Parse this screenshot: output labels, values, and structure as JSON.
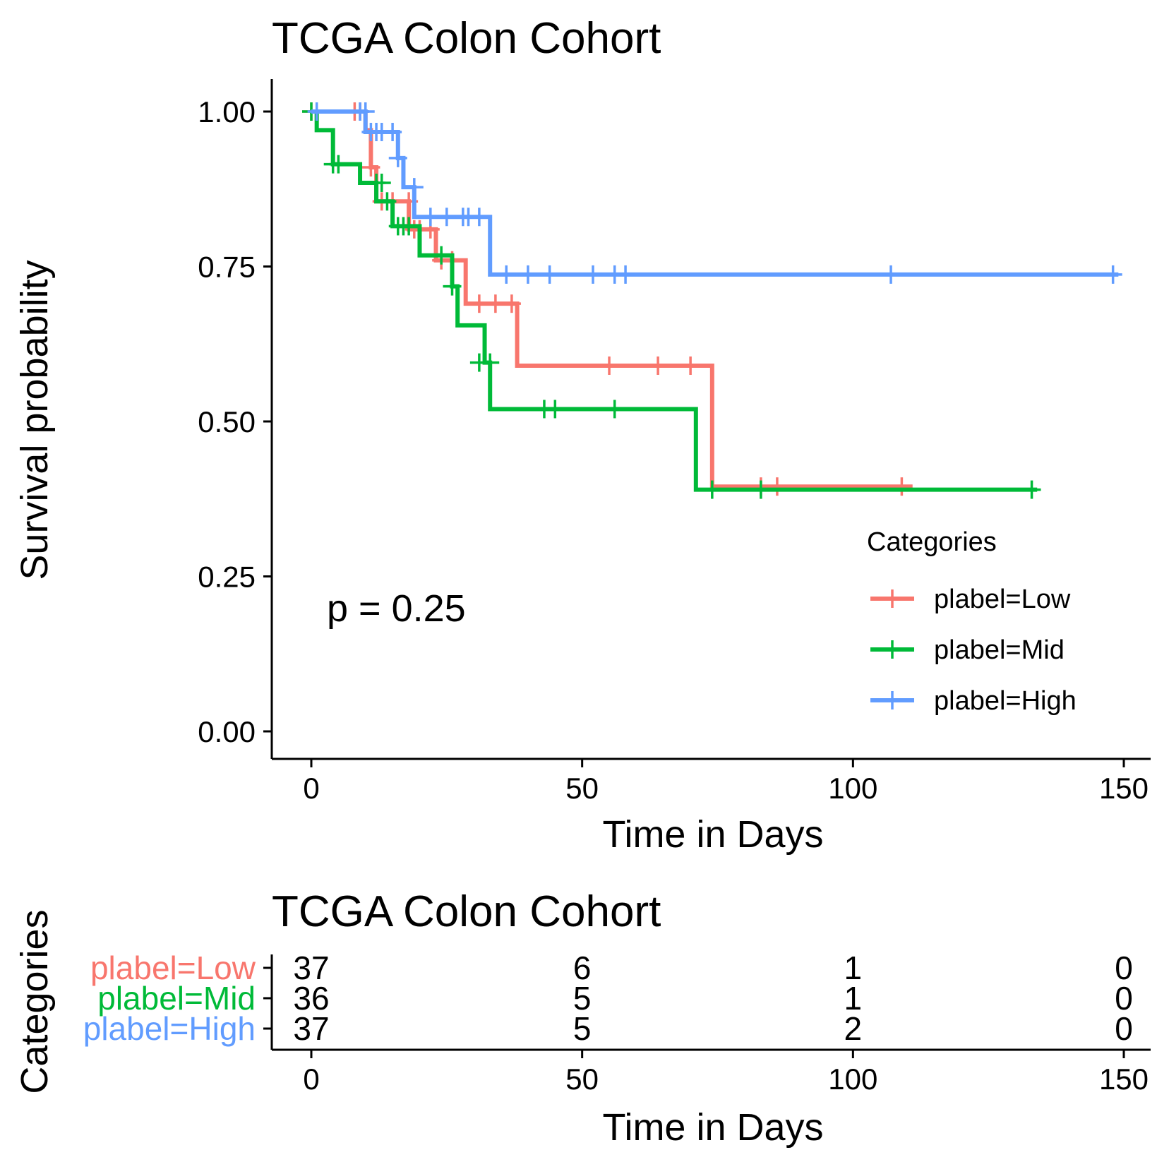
{
  "chart_data": [
    {
      "type": "line",
      "subtype": "kaplan-meier",
      "title": "TCGA Colon Cohort",
      "xlabel": "Time in Days",
      "ylabel": "Survival probability",
      "xlim": [
        0,
        150
      ],
      "ylim": [
        0,
        1
      ],
      "xticks": [
        "0",
        "50",
        "100",
        "150"
      ],
      "yticks": [
        "0.00",
        "0.25",
        "0.50",
        "0.75",
        "1.00"
      ],
      "grid": false,
      "annotation": "p = 0.25",
      "legend": {
        "title": "Categories",
        "position": "right",
        "entries": [
          "plabel=Low",
          "plabel=Mid",
          "plabel=High"
        ]
      },
      "series": [
        {
          "name": "plabel=Low",
          "color": "#F8766D",
          "steps": [
            [
              0,
              1.0
            ],
            [
              10,
              0.97
            ],
            [
              11,
              0.91
            ],
            [
              12,
              0.855
            ],
            [
              18,
              0.81
            ],
            [
              23,
              0.76
            ],
            [
              28.5,
              0.69
            ],
            [
              38,
              0.59
            ],
            [
              74,
              0.395
            ]
          ],
          "end": 111,
          "censor": [
            [
              0,
              1.0
            ],
            [
              8,
              1.0
            ],
            [
              9,
              1.0
            ],
            [
              11,
              0.91
            ],
            [
              13,
              0.855
            ],
            [
              15,
              0.855
            ],
            [
              18,
              0.855
            ],
            [
              19,
              0.81
            ],
            [
              20,
              0.81
            ],
            [
              22,
              0.81
            ],
            [
              24,
              0.76
            ],
            [
              26,
              0.76
            ],
            [
              31,
              0.69
            ],
            [
              34,
              0.69
            ],
            [
              37,
              0.69
            ],
            [
              55,
              0.59
            ],
            [
              64,
              0.59
            ],
            [
              70,
              0.59
            ],
            [
              83,
              0.395
            ],
            [
              86,
              0.395
            ],
            [
              109,
              0.395
            ]
          ]
        },
        {
          "name": "plabel=Mid",
          "color": "#00BA38",
          "steps": [
            [
              0,
              1.0
            ],
            [
              1,
              0.97
            ],
            [
              4,
              0.915
            ],
            [
              9,
              0.885
            ],
            [
              12,
              0.855
            ],
            [
              15,
              0.815
            ],
            [
              20,
              0.768
            ],
            [
              26,
              0.718
            ],
            [
              27,
              0.655
            ],
            [
              32,
              0.595
            ],
            [
              33,
              0.52
            ],
            [
              71,
              0.39
            ]
          ],
          "end": 134,
          "censor": [
            [
              0,
              1.0
            ],
            [
              4,
              0.915
            ],
            [
              5,
              0.915
            ],
            [
              12,
              0.885
            ],
            [
              13,
              0.885
            ],
            [
              14,
              0.855
            ],
            [
              16,
              0.815
            ],
            [
              17,
              0.815
            ],
            [
              18,
              0.815
            ],
            [
              24,
              0.768
            ],
            [
              26,
              0.718
            ],
            [
              31,
              0.595
            ],
            [
              33,
              0.595
            ],
            [
              43,
              0.52
            ],
            [
              45,
              0.52
            ],
            [
              56,
              0.52
            ],
            [
              74,
              0.39
            ],
            [
              83,
              0.39
            ],
            [
              133,
              0.39
            ]
          ]
        },
        {
          "name": "plabel=High",
          "color": "#619CFF",
          "steps": [
            [
              0,
              1.0
            ],
            [
              10,
              0.967
            ],
            [
              16,
              0.925
            ],
            [
              17,
              0.878
            ],
            [
              19,
              0.83
            ],
            [
              33,
              0.737
            ]
          ],
          "end": 149,
          "censor": [
            [
              1,
              1.0
            ],
            [
              9,
              1.0
            ],
            [
              10,
              1.0
            ],
            [
              11,
              0.967
            ],
            [
              12,
              0.967
            ],
            [
              13,
              0.967
            ],
            [
              15,
              0.967
            ],
            [
              16,
              0.925
            ],
            [
              19,
              0.878
            ],
            [
              22,
              0.83
            ],
            [
              25,
              0.83
            ],
            [
              28,
              0.83
            ],
            [
              29,
              0.83
            ],
            [
              31,
              0.83
            ],
            [
              36,
              0.737
            ],
            [
              40,
              0.737
            ],
            [
              44,
              0.737
            ],
            [
              52,
              0.737
            ],
            [
              56,
              0.737
            ],
            [
              58,
              0.737
            ],
            [
              107,
              0.737
            ],
            [
              148,
              0.737
            ]
          ]
        }
      ]
    },
    {
      "type": "table",
      "subtype": "number-at-risk",
      "title": "TCGA Colon Cohort",
      "xlabel": "Time in Days",
      "ylabel": "Categories",
      "xlim": [
        0,
        150
      ],
      "x": [
        0,
        50,
        100,
        150
      ],
      "xticks": [
        "0",
        "50",
        "100",
        "150"
      ],
      "series": [
        {
          "name": "plabel=Low",
          "color": "#F8766D",
          "values": [
            "37",
            "6",
            "1",
            "0"
          ]
        },
        {
          "name": "plabel=Mid",
          "color": "#00BA38",
          "values": [
            "36",
            "5",
            "1",
            "0"
          ]
        },
        {
          "name": "plabel=High",
          "color": "#619CFF",
          "values": [
            "37",
            "5",
            "2",
            "0"
          ]
        }
      ]
    }
  ]
}
